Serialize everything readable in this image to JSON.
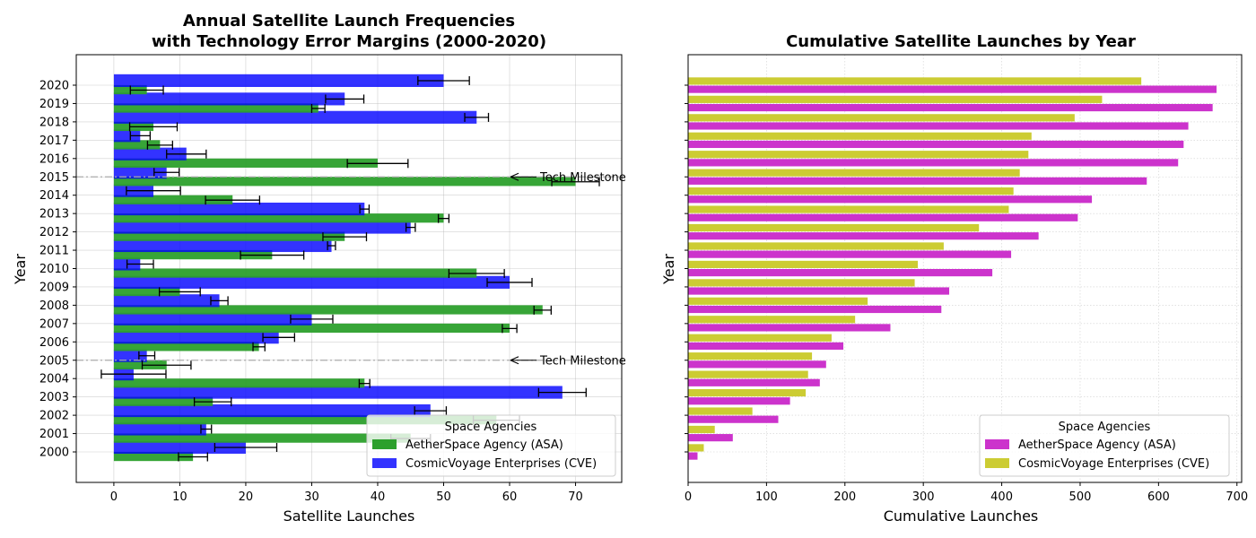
{
  "chart_data": [
    {
      "type": "bar",
      "orientation": "horizontal",
      "title": "Annual Satellite Launch Frequencies\nwith Technology Error Margins (2000-2020)",
      "xlabel": "Satellite Launches",
      "ylabel": "Year",
      "categories": [
        "2000",
        "2001",
        "2002",
        "2003",
        "2004",
        "2005",
        "2006",
        "2007",
        "2008",
        "2009",
        "2010",
        "2011",
        "2012",
        "2013",
        "2014",
        "2015",
        "2016",
        "2017",
        "2018",
        "2019",
        "2020"
      ],
      "xlim": [
        -5.7,
        77
      ],
      "xticks": [
        0,
        10,
        20,
        30,
        40,
        50,
        60,
        70
      ],
      "grid": true,
      "legend": {
        "title": "Space Agencies",
        "placement": "lower-right"
      },
      "series": [
        {
          "name": "AetherSpace Agency (ASA)",
          "color": "#2ca02c",
          "values": [
            12,
            45,
            58,
            15,
            38,
            8,
            22,
            60,
            65,
            10,
            55,
            24,
            35,
            50,
            18,
            70,
            40,
            7,
            6,
            31,
            5
          ],
          "errors": [
            2.2,
            3.0,
            3.5,
            2.8,
            0.8,
            3.7,
            0.9,
            1.1,
            1.3,
            3.1,
            4.2,
            4.8,
            3.3,
            0.8,
            4.1,
            3.6,
            4.6,
            1.9,
            3.6,
            1.0,
            2.5
          ]
        },
        {
          "name": "CosmicVoyage Enterprises (CVE)",
          "color": "#0000ff",
          "values": [
            20,
            14,
            48,
            68,
            3,
            5,
            25,
            30,
            16,
            60,
            4,
            33,
            45,
            38,
            6,
            8,
            11,
            4,
            55,
            35,
            50
          ],
          "errors": [
            4.7,
            0.8,
            2.4,
            3.6,
            4.9,
            1.2,
            2.4,
            3.2,
            1.3,
            3.4,
            2.0,
            0.6,
            0.7,
            0.7,
            4.1,
            1.9,
            3.0,
            1.5,
            1.8,
            2.9,
            3.9
          ]
        }
      ],
      "annotations": [
        {
          "text": "Tech Milestone",
          "year": "2005",
          "x": 60,
          "line": "dashdot"
        },
        {
          "text": "Tech Milestone",
          "year": "2015",
          "x": 60,
          "line": "dashdot"
        }
      ]
    },
    {
      "type": "bar",
      "orientation": "horizontal",
      "title": "Cumulative Satellite Launches by Year",
      "xlabel": "Cumulative Launches",
      "ylabel": "Year",
      "categories": [
        "2000",
        "2001",
        "2002",
        "2003",
        "2004",
        "2005",
        "2006",
        "2007",
        "2008",
        "2009",
        "2010",
        "2011",
        "2012",
        "2013",
        "2014",
        "2015",
        "2016",
        "2017",
        "2018",
        "2019",
        "2020"
      ],
      "xlim": [
        0,
        706
      ],
      "xticks": [
        0,
        100,
        200,
        300,
        400,
        500,
        600,
        700
      ],
      "grid": true,
      "legend": {
        "title": "Space Agencies",
        "placement": "lower-right"
      },
      "series": [
        {
          "name": "AetherSpace Agency (ASA)",
          "color": "#cc33cc",
          "values": [
            12,
            57,
            115,
            130,
            168,
            176,
            198,
            258,
            323,
            333,
            388,
            412,
            447,
            497,
            515,
            585,
            625,
            632,
            638,
            669,
            674
          ]
        },
        {
          "name": "CosmicVoyage Enterprises (CVE)",
          "color": "#cccc33",
          "values": [
            20,
            34,
            82,
            150,
            153,
            158,
            183,
            213,
            229,
            289,
            293,
            326,
            371,
            409,
            415,
            423,
            434,
            438,
            493,
            528,
            578
          ]
        }
      ]
    }
  ]
}
